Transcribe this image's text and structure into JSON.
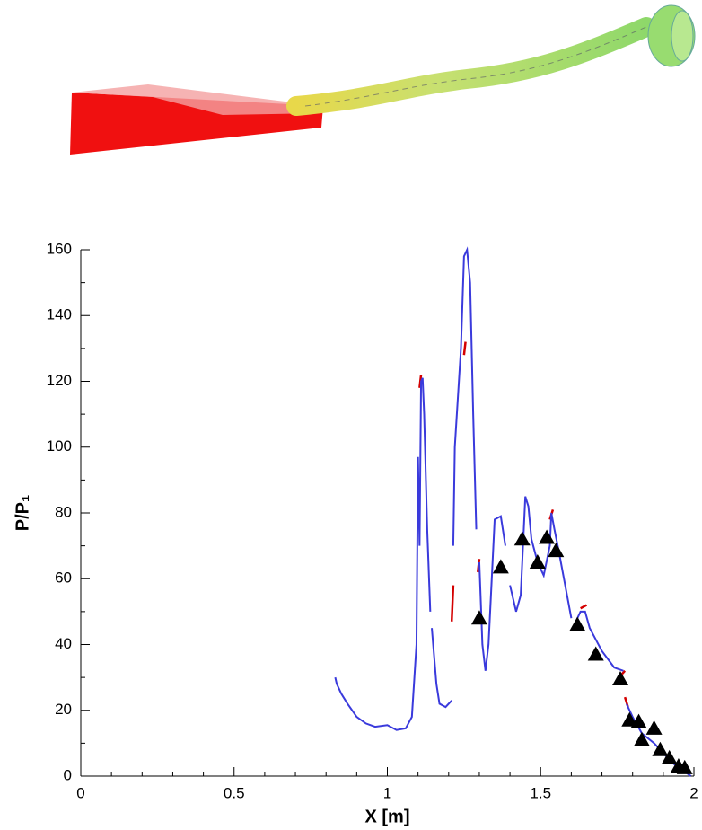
{
  "chart_data": {
    "type": "line",
    "xlabel": "X [m]",
    "ylabel": "P/P₁",
    "xlim": [
      0,
      2
    ],
    "xticks": [
      0,
      0.5,
      1,
      1.5,
      2
    ],
    "xminorticks": [
      0.1,
      0.2,
      0.3,
      0.4,
      0.6,
      0.7,
      0.8,
      0.9,
      1.1,
      1.2,
      1.3,
      1.4,
      1.6,
      1.7,
      1.8,
      1.9
    ],
    "ylim": [
      0,
      160
    ],
    "yticks": [
      0,
      20,
      40,
      60,
      80,
      100,
      120,
      140,
      160
    ],
    "yminorticks": [
      10,
      30,
      50,
      70,
      90,
      110,
      130,
      150
    ],
    "series": [
      {
        "color": "#d40000",
        "x": [
          1.105,
          1.11,
          null,
          1.21,
          1.215,
          null,
          1.25,
          1.255,
          null,
          1.295,
          1.3,
          null,
          1.53,
          1.54,
          null,
          1.63,
          1.65,
          null,
          1.765,
          1.775,
          null,
          1.775,
          1.785
        ],
        "values": [
          118,
          122,
          null,
          47,
          58,
          null,
          128,
          132,
          null,
          62,
          66,
          null,
          78,
          81,
          null,
          51,
          52,
          null,
          31,
          32,
          null,
          24,
          21
        ]
      },
      {
        "color": "#3a3adc",
        "x": [
          0.83,
          0.835,
          0.85,
          0.87,
          0.9,
          0.93,
          0.96,
          1.0,
          1.03,
          1.06,
          1.08,
          1.095,
          1.1,
          1.105,
          1.11,
          1.115,
          1.12,
          1.13,
          1.14,
          null,
          1.145,
          1.16,
          1.17,
          1.19,
          1.21,
          null,
          1.215,
          1.22,
          1.24,
          1.25,
          1.26,
          1.27,
          1.28,
          1.29,
          null,
          1.3,
          1.31,
          1.32,
          1.33,
          1.35,
          1.37,
          1.385,
          null,
          1.4,
          1.42,
          1.435,
          1.45,
          1.46,
          1.47,
          1.49,
          1.51,
          1.53,
          1.535,
          1.545,
          1.56,
          1.58,
          1.6,
          null,
          1.61,
          1.63,
          1.645,
          1.66,
          1.7,
          1.74,
          1.77,
          null,
          1.78,
          1.8,
          1.83,
          1.87,
          1.9,
          1.93,
          1.96,
          1.99
        ],
        "values": [
          30,
          28,
          25,
          22,
          18,
          16,
          15,
          15.5,
          14,
          14.5,
          18,
          40,
          97,
          70,
          120,
          121,
          110,
          75,
          50,
          null,
          45,
          28,
          22,
          21,
          23,
          null,
          70,
          100,
          130,
          158,
          160,
          150,
          110,
          75,
          null,
          65,
          40,
          32,
          40,
          78,
          79,
          70,
          null,
          58,
          50,
          55,
          85,
          82,
          72,
          65,
          61,
          70,
          80,
          75,
          68,
          58,
          48,
          null,
          46,
          50,
          50,
          45,
          38,
          33,
          32,
          null,
          22,
          18,
          13,
          10,
          7,
          4,
          2,
          0
        ]
      }
    ],
    "markers": {
      "color": "#000000",
      "x": [
        1.3,
        1.37,
        1.44,
        1.49,
        1.52,
        1.55,
        1.62,
        1.68,
        1.76,
        1.79,
        1.82,
        1.83,
        1.87,
        1.89,
        1.92,
        1.95,
        1.97
      ],
      "values": [
        48,
        63.5,
        72,
        65,
        72.5,
        68.5,
        46,
        37,
        29.5,
        17,
        16.5,
        11,
        14.5,
        8,
        5.5,
        3,
        2.5
      ]
    }
  }
}
